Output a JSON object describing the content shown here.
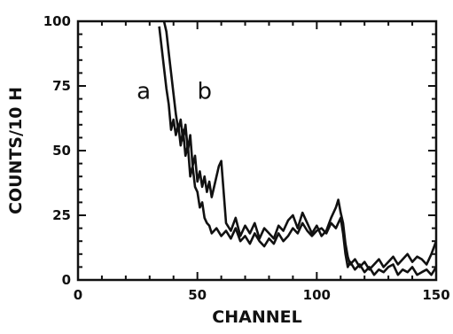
{
  "chart_data": {
    "type": "line",
    "xlabel": "CHANNEL",
    "ylabel": "COUNTS/10 H",
    "xlim": [
      0,
      150
    ],
    "ylim": [
      0,
      100
    ],
    "xticks": [
      0,
      50,
      100,
      150
    ],
    "yticks": [
      0,
      25,
      50,
      75,
      100
    ],
    "grid": false,
    "legend": "none",
    "series": [
      {
        "name": "a",
        "label": "a",
        "color": "#111111",
        "x": [
          34,
          35,
          36,
          37,
          38,
          39,
          40,
          41,
          42,
          43,
          44,
          45,
          46,
          47,
          48,
          49,
          50,
          51,
          52,
          53,
          54,
          55,
          56,
          58,
          60,
          62,
          64,
          66,
          68,
          70,
          72,
          74,
          76,
          78,
          80,
          82,
          84,
          86,
          88,
          90,
          92,
          94,
          96,
          98,
          100,
          102,
          104,
          106,
          108,
          110,
          111,
          112,
          113,
          114,
          116,
          118,
          120,
          122,
          124,
          126,
          128,
          130,
          132,
          134,
          136,
          138,
          140,
          142,
          144,
          146,
          148,
          150
        ],
        "y": [
          98,
          90,
          82,
          74,
          68,
          58,
          62,
          56,
          60,
          52,
          58,
          48,
          52,
          40,
          44,
          36,
          34,
          28,
          30,
          24,
          22,
          21,
          18,
          20,
          17,
          19,
          16,
          20,
          15,
          17,
          14,
          18,
          15,
          13,
          16,
          14,
          18,
          15,
          17,
          20,
          18,
          22,
          19,
          17,
          19,
          20,
          18,
          22,
          20,
          24,
          18,
          10,
          5,
          7,
          4,
          6,
          3,
          5,
          2,
          4,
          3,
          5,
          6,
          2,
          4,
          3,
          5,
          2,
          3,
          4,
          2,
          5
        ]
      },
      {
        "name": "b",
        "label": "b",
        "color": "#111111",
        "x": [
          36,
          37,
          38,
          39,
          40,
          41,
          42,
          43,
          44,
          45,
          46,
          47,
          48,
          49,
          50,
          51,
          52,
          53,
          54,
          55,
          56,
          57,
          58,
          59,
          60,
          62,
          64,
          66,
          68,
          70,
          72,
          74,
          76,
          78,
          80,
          82,
          84,
          86,
          88,
          90,
          92,
          94,
          96,
          98,
          100,
          102,
          104,
          106,
          108,
          109,
          110,
          111,
          112,
          113,
          114,
          116,
          118,
          120,
          122,
          124,
          126,
          128,
          130,
          132,
          134,
          136,
          138,
          140,
          142,
          144,
          146,
          148,
          150
        ],
        "y": [
          100,
          96,
          88,
          80,
          72,
          64,
          58,
          62,
          54,
          60,
          50,
          56,
          44,
          48,
          38,
          42,
          36,
          40,
          34,
          38,
          32,
          36,
          40,
          44,
          46,
          22,
          19,
          24,
          17,
          21,
          18,
          22,
          16,
          20,
          18,
          16,
          21,
          19,
          23,
          25,
          20,
          26,
          22,
          18,
          21,
          17,
          19,
          24,
          28,
          31,
          26,
          22,
          14,
          9,
          6,
          8,
          5,
          7,
          4,
          6,
          8,
          5,
          7,
          9,
          6,
          8,
          10,
          7,
          9,
          8,
          6,
          10,
          15
        ]
      }
    ]
  }
}
